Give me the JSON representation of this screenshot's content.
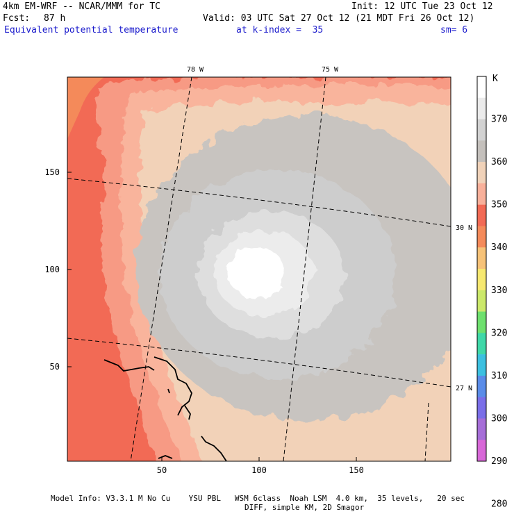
{
  "header": {
    "model_line": "4km EM-WRF -- NCAR/MMM for TC",
    "init_line": "Init: 12 UTC Tue 23 Oct 12",
    "forecast_label": "Fcst:",
    "forecast_hours": "87 h",
    "valid_line": "Valid: 03 UTC Sat 27 Oct 12 (21 MDT Fri 26 Oct 12)",
    "field_name": "Equivalent potential temperature",
    "level_line": "at k-index =  35",
    "smoothing": "sm= 6"
  },
  "map": {
    "lon_labels": [
      "78 W",
      "75 W"
    ],
    "lat_labels": [
      "30 N",
      "27 N"
    ],
    "x_ticks": [
      "50",
      "100",
      "150"
    ],
    "y_ticks": [
      "150",
      "100",
      "50"
    ],
    "x_range": [
      1,
      199
    ],
    "y_range": [
      1,
      199
    ]
  },
  "colorbar": {
    "unit": "K",
    "labels": [
      "370",
      "360",
      "350",
      "340",
      "330",
      "320",
      "310",
      "300",
      "290",
      "280"
    ],
    "colors": [
      "#ffffff",
      "#ebebeb",
      "#d2d2d2",
      "#c4c0bc",
      "#f0d2b9",
      "#f8b09a",
      "#f26a55",
      "#f48a5a",
      "#f6c278",
      "#f6e870",
      "#cbe86a",
      "#6ee06e",
      "#3fd8a8",
      "#3cc0e0",
      "#5a8ce8",
      "#7a6ee8",
      "#a66ed8",
      "#d868d8"
    ]
  },
  "footer": {
    "line1": "Model Info: V3.3.1 M No Cu    YSU PBL   WSM 6class  Noah LSM  4.0 km,  35 levels,   20 sec",
    "line2": "DIFF, simple KM, 2D Smagor"
  }
}
